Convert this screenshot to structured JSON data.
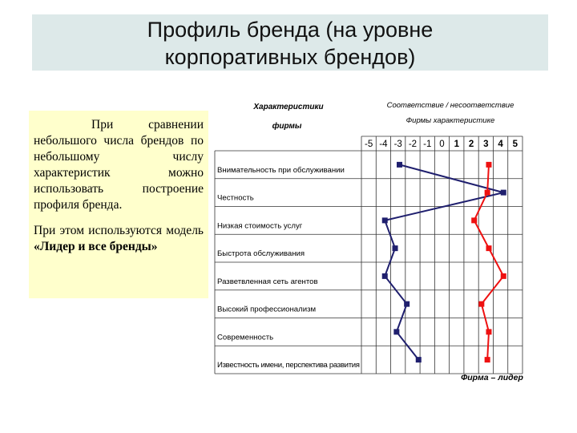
{
  "slide": {
    "title_line1": "Профиль бренда (на уровне",
    "title_line2": "корпоративных брендов)"
  },
  "note": {
    "paragraph1": "При сравнении небольшого числа брендов по небольшому числу характеристик можно использовать построение профиля бренда.",
    "paragraph2_prefix": "При этом используются модель ",
    "paragraph2_bold": "«Лидер и все бренды»"
  },
  "chart_data": {
    "type": "line",
    "header_left_line1": "Характеристики",
    "header_left_line2": "фирмы",
    "header_right_line1": "Соответствие / несоответствие",
    "header_right_line2": "Фирмы характеристике",
    "x_ticks": [
      "-5",
      "-4",
      "-3",
      "-2",
      "-1",
      "0",
      "1",
      "2",
      "3",
      "4",
      "5"
    ],
    "xlim": [
      -5,
      5
    ],
    "categories": [
      "Внимательность при обслуживании",
      "Честность",
      "Низкая стоимость услуг",
      "Быстрота обслуживания",
      "Разветвленная сеть агентов",
      "Высокий профессионализм",
      "Современность",
      "Известность имени, перспектива развития"
    ],
    "series": [
      {
        "name": "",
        "color": "#1f1f6e",
        "values": [
          -2.9,
          4.2,
          -3.9,
          -3.2,
          -3.9,
          -2.4,
          -3.1,
          -1.6
        ]
      },
      {
        "name": "Фирма – лидер",
        "color": "#ee1111",
        "values": [
          3.2,
          3.1,
          2.2,
          3.2,
          4.2,
          2.7,
          3.2,
          3.1
        ]
      }
    ],
    "legend_label": "Фирма – лидер",
    "grid": true
  }
}
